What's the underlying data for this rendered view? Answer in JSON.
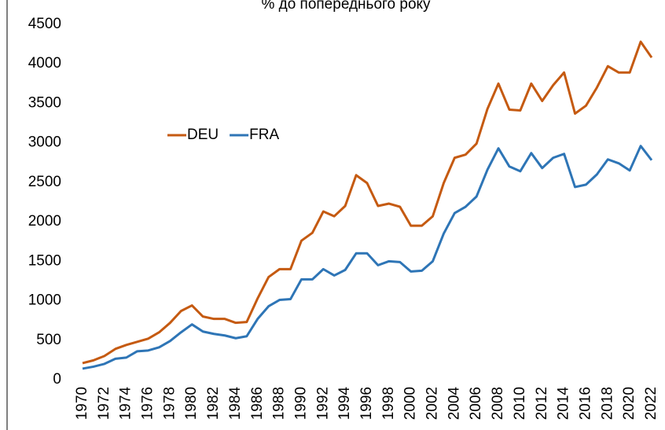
{
  "chart_data": {
    "type": "line",
    "title": "% до попереднього року",
    "x": [
      1970,
      1971,
      1972,
      1973,
      1974,
      1975,
      1976,
      1977,
      1978,
      1979,
      1980,
      1981,
      1982,
      1983,
      1984,
      1985,
      1986,
      1987,
      1988,
      1989,
      1990,
      1991,
      1992,
      1993,
      1994,
      1995,
      1996,
      1997,
      1998,
      1999,
      2000,
      2001,
      2002,
      2003,
      2004,
      2005,
      2006,
      2007,
      2008,
      2009,
      2010,
      2011,
      2012,
      2013,
      2014,
      2015,
      2016,
      2017,
      2018,
      2019,
      2020,
      2021,
      2022
    ],
    "xlim": [
      1970,
      2022
    ],
    "xticks": [
      1970,
      1972,
      1974,
      1976,
      1978,
      1980,
      1982,
      1984,
      1986,
      1988,
      1990,
      1992,
      1994,
      1996,
      1998,
      2000,
      2002,
      2004,
      2006,
      2008,
      2010,
      2012,
      2014,
      2016,
      2018,
      2020,
      2022
    ],
    "ylim": [
      0,
      4500
    ],
    "yticks": [
      0,
      500,
      1000,
      1500,
      2000,
      2500,
      3000,
      3500,
      4000,
      4500
    ],
    "grid": false,
    "legend": "center",
    "series": [
      {
        "name": "DEU",
        "color": "#c55a11",
        "values": [
          210,
          245,
          300,
          390,
          440,
          480,
          520,
          600,
          720,
          870,
          940,
          800,
          770,
          770,
          720,
          730,
          1030,
          1300,
          1400,
          1400,
          1760,
          1860,
          2130,
          2070,
          2200,
          2590,
          2490,
          2200,
          2230,
          2190,
          1950,
          1950,
          2070,
          2490,
          2810,
          2850,
          2990,
          3430,
          3750,
          3420,
          3410,
          3750,
          3530,
          3730,
          3890,
          3370,
          3470,
          3700,
          3970,
          3890,
          3890,
          4280,
          4080
        ]
      },
      {
        "name": "FRA",
        "color": "#2e75b6",
        "values": [
          140,
          165,
          200,
          265,
          280,
          360,
          370,
          410,
          490,
          600,
          700,
          610,
          580,
          560,
          525,
          550,
          770,
          930,
          1010,
          1020,
          1270,
          1270,
          1400,
          1320,
          1390,
          1600,
          1600,
          1450,
          1500,
          1490,
          1370,
          1380,
          1500,
          1850,
          2110,
          2190,
          2320,
          2660,
          2930,
          2700,
          2640,
          2870,
          2680,
          2810,
          2860,
          2440,
          2470,
          2600,
          2790,
          2740,
          2650,
          2960,
          2780
        ]
      }
    ]
  }
}
